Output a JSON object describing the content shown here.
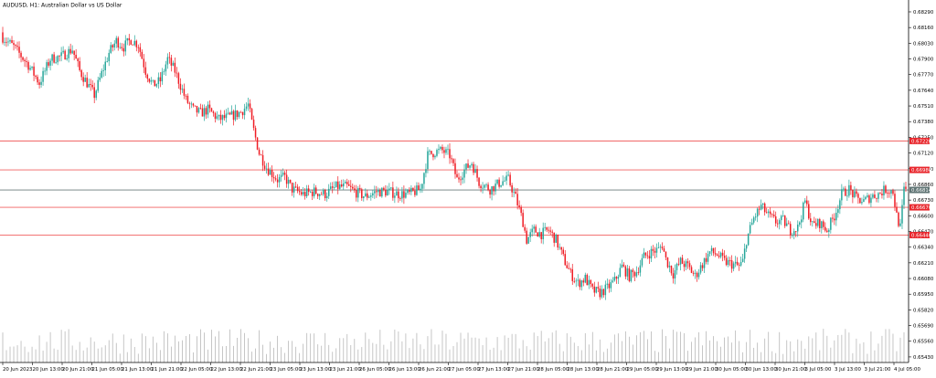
{
  "chart_data": {
    "type": "candlestick",
    "title": "AUDUSD, H1:  Australian Dollar vs US Dollar",
    "colors": {
      "bull": "#26a69a",
      "bear": "#ef1c24",
      "level_line": "#f06060",
      "level_tag": "#e8262c",
      "current_line": "#6b7b7b",
      "current_tag": "#5f7474",
      "volume": "#b8b8b8",
      "axis": "#000000"
    },
    "ylim": [
      0.65384,
      0.68358
    ],
    "y_ticks": [
      "0.68290",
      "0.68160",
      "0.68030",
      "0.67900",
      "0.67770",
      "0.67640",
      "0.67510",
      "0.67380",
      "0.67250",
      "0.67120",
      "0.66990",
      "0.66860",
      "0.66730",
      "0.66600",
      "0.66470",
      "0.66340",
      "0.66210",
      "0.66080",
      "0.65950",
      "0.65820",
      "0.65690",
      "0.65560",
      "0.65430"
    ],
    "x_ticks": [
      "20 Jun 2023",
      "20 Jun 13:00",
      "20 Jun 21:00",
      "21 Jun 05:00",
      "21 Jun 13:00",
      "21 Jun 21:00",
      "22 Jun 05:00",
      "22 Jun 13:00",
      "22 Jun 21:00",
      "23 Jun 05:00",
      "23 Jun 13:00",
      "23 Jun 21:00",
      "26 Jun 05:00",
      "26 Jun 13:00",
      "26 Jun 21:00",
      "27 Jun 05:00",
      "27 Jun 13:00",
      "27 Jun 21:00",
      "28 Jun 05:00",
      "28 Jun 13:00",
      "28 Jun 21:00",
      "29 Jun 05:00",
      "29 Jun 13:00",
      "29 Jun 21:00",
      "30 Jun 05:00",
      "30 Jun 13:00",
      "30 Jun 21:00",
      "3 Jul 05:00",
      "3 Jul 13:00",
      "3 Jul 21:00",
      "4 Jul 05:00"
    ],
    "levels": [
      {
        "price": 0.6722,
        "label": "0.67220"
      },
      {
        "price": 0.6698,
        "label": "0.66980"
      },
      {
        "price": 0.6667,
        "label": "0.66670"
      },
      {
        "price": 0.6644,
        "label": "0.66440"
      }
    ],
    "current_price": {
      "price": 0.66814,
      "label": "0.66814"
    },
    "close_path": [
      [
        0,
        0.6808
      ],
      [
        6,
        0.68
      ],
      [
        14,
        0.6785
      ],
      [
        20,
        0.677
      ],
      [
        26,
        0.679
      ],
      [
        32,
        0.6792
      ],
      [
        38,
        0.6798
      ],
      [
        42,
        0.678
      ],
      [
        46,
        0.677
      ],
      [
        50,
        0.676
      ],
      [
        54,
        0.6778
      ],
      [
        58,
        0.6795
      ],
      [
        62,
        0.6805
      ],
      [
        66,
        0.68
      ],
      [
        70,
        0.6806
      ],
      [
        74,
        0.6802
      ],
      [
        78,
        0.678
      ],
      [
        82,
        0.6768
      ],
      [
        86,
        0.6772
      ],
      [
        90,
        0.679
      ],
      [
        94,
        0.678
      ],
      [
        100,
        0.6756
      ],
      [
        104,
        0.6748
      ],
      [
        108,
        0.6745
      ],
      [
        112,
        0.6748
      ],
      [
        118,
        0.674
      ],
      [
        124,
        0.6742
      ],
      [
        130,
        0.6746
      ],
      [
        134,
        0.6752
      ],
      [
        136,
        0.6737
      ],
      [
        140,
        0.6712
      ],
      [
        144,
        0.67
      ],
      [
        150,
        0.669
      ],
      [
        154,
        0.6692
      ],
      [
        158,
        0.6682
      ],
      [
        164,
        0.6678
      ],
      [
        170,
        0.668
      ],
      [
        176,
        0.6678
      ],
      [
        182,
        0.6684
      ],
      [
        188,
        0.6684
      ],
      [
        192,
        0.668
      ],
      [
        198,
        0.6676
      ],
      [
        204,
        0.668
      ],
      [
        210,
        0.668
      ],
      [
        216,
        0.6678
      ],
      [
        222,
        0.6678
      ],
      [
        228,
        0.6682
      ],
      [
        232,
        0.671
      ],
      [
        236,
        0.6713
      ],
      [
        240,
        0.6714
      ],
      [
        244,
        0.671
      ],
      [
        248,
        0.669
      ],
      [
        252,
        0.6698
      ],
      [
        256,
        0.6704
      ],
      [
        260,
        0.6688
      ],
      [
        266,
        0.6682
      ],
      [
        272,
        0.6688
      ],
      [
        276,
        0.669
      ],
      [
        280,
        0.6675
      ],
      [
        284,
        0.6655
      ],
      [
        286,
        0.664
      ],
      [
        290,
        0.6648
      ],
      [
        294,
        0.6645
      ],
      [
        298,
        0.6648
      ],
      [
        302,
        0.664
      ],
      [
        306,
        0.6625
      ],
      [
        310,
        0.6612
      ],
      [
        314,
        0.6604
      ],
      [
        318,
        0.6608
      ],
      [
        322,
        0.6598
      ],
      [
        326,
        0.6596
      ],
      [
        330,
        0.66
      ],
      [
        334,
        0.6606
      ],
      [
        338,
        0.6618
      ],
      [
        342,
        0.661
      ],
      [
        346,
        0.6614
      ],
      [
        350,
        0.6626
      ],
      [
        354,
        0.663
      ],
      [
        358,
        0.6632
      ],
      [
        360,
        0.6636
      ],
      [
        362,
        0.6624
      ],
      [
        366,
        0.6612
      ],
      [
        370,
        0.6622
      ],
      [
        374,
        0.6618
      ],
      [
        378,
        0.661
      ],
      [
        382,
        0.662
      ],
      [
        386,
        0.663
      ],
      [
        390,
        0.6628
      ],
      [
        394,
        0.6622
      ],
      [
        398,
        0.662
      ],
      [
        402,
        0.6618
      ],
      [
        404,
        0.6622
      ],
      [
        406,
        0.664
      ],
      [
        410,
        0.6658
      ],
      [
        414,
        0.6668
      ],
      [
        418,
        0.666
      ],
      [
        422,
        0.6655
      ],
      [
        426,
        0.6656
      ],
      [
        430,
        0.6648
      ],
      [
        434,
        0.665
      ],
      [
        438,
        0.6672
      ],
      [
        442,
        0.6652
      ],
      [
        446,
        0.6654
      ],
      [
        450,
        0.6648
      ],
      [
        454,
        0.666
      ],
      [
        458,
        0.6678
      ],
      [
        462,
        0.6682
      ],
      [
        466,
        0.6674
      ],
      [
        470,
        0.6672
      ],
      [
        474,
        0.6676
      ],
      [
        478,
        0.6678
      ],
      [
        482,
        0.6682
      ],
      [
        486,
        0.668
      ],
      [
        488,
        0.666
      ],
      [
        490,
        0.665
      ],
      [
        492,
        0.6681
      ]
    ],
    "candle_count": 494,
    "volume_max": 100
  }
}
